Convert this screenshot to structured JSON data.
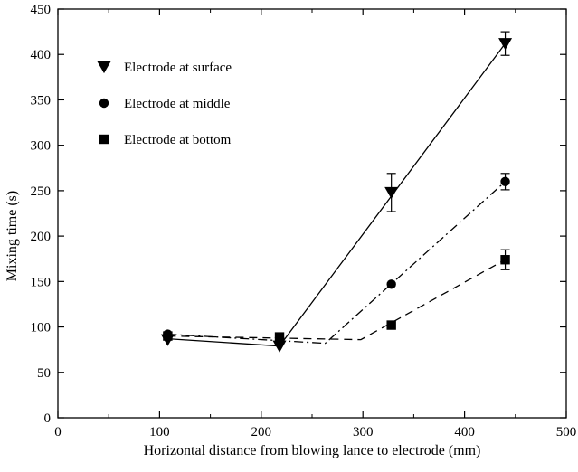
{
  "chart_data": {
    "type": "scatter",
    "title": "",
    "xlabel": "Horizontal distance from blowing lance to electrode (mm)",
    "ylabel": "Mixing time (s)",
    "xlim": [
      0,
      500
    ],
    "ylim": [
      0,
      450
    ],
    "x_ticks": [
      "0",
      "100",
      "200",
      "300",
      "400",
      "500"
    ],
    "y_ticks": [
      "0",
      "50",
      "100",
      "150",
      "200",
      "250",
      "300",
      "350",
      "400",
      "450"
    ],
    "grid": false,
    "legend_position": "top-left",
    "series": [
      {
        "name": "Electrode at surface",
        "marker": "triangle-down",
        "points": [
          {
            "x": 108,
            "y": 86
          },
          {
            "x": 218,
            "y": 79
          },
          {
            "x": 328,
            "y": 248,
            "err": 21
          },
          {
            "x": 440,
            "y": 412,
            "err": 13
          }
        ],
        "fit_line": {
          "style": "solid",
          "x": [
            108,
            218,
            440
          ],
          "y": [
            87,
            79,
            412
          ]
        }
      },
      {
        "name": "Electrode at middle",
        "marker": "circle",
        "points": [
          {
            "x": 108,
            "y": 92
          },
          {
            "x": 218,
            "y": 88
          },
          {
            "x": 328,
            "y": 147
          },
          {
            "x": 440,
            "y": 260,
            "err": 9
          }
        ],
        "fit_line": {
          "style": "dashdot",
          "x": [
            108,
            263,
            440
          ],
          "y": [
            92,
            82,
            260
          ]
        }
      },
      {
        "name": "Electrode at bottom",
        "marker": "square",
        "points": [
          {
            "x": 108,
            "y": 90
          },
          {
            "x": 218,
            "y": 89
          },
          {
            "x": 328,
            "y": 102
          },
          {
            "x": 440,
            "y": 174,
            "err": 11
          }
        ],
        "fit_line": {
          "style": "dashed",
          "x": [
            108,
            298,
            440
          ],
          "y": [
            90,
            86,
            174
          ]
        }
      }
    ]
  }
}
